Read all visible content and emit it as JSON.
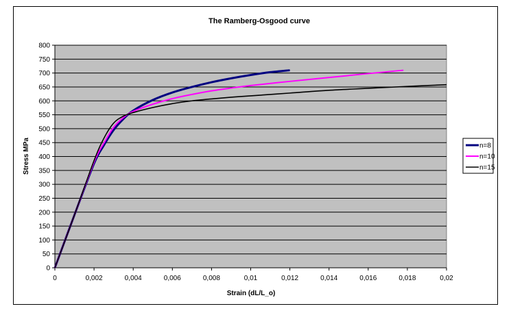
{
  "chart_data": {
    "type": "line",
    "title": "The Ramberg-Osgood curve",
    "xlabel": "Strain (dL/L_o)",
    "ylabel": "Stress MPa",
    "xlim": [
      0,
      0.02
    ],
    "ylim": [
      0,
      800
    ],
    "x_ticks": [
      "0",
      "0,002",
      "0,004",
      "0,006",
      "0,008",
      "0,01",
      "0,012",
      "0,014",
      "0,016",
      "0,018",
      "0,02"
    ],
    "y_ticks": [
      "0",
      "50",
      "100",
      "150",
      "200",
      "250",
      "300",
      "350",
      "400",
      "450",
      "500",
      "550",
      "600",
      "650",
      "700",
      "750",
      "800"
    ],
    "grid": true,
    "plot_background": "#c0c0c0",
    "legend_position": "right",
    "series": [
      {
        "name": "n=8",
        "color": "#000080",
        "x": [
          0,
          0.001,
          0.002,
          0.0025,
          0.003,
          0.0035,
          0.004,
          0.005,
          0.006,
          0.007,
          0.008,
          0.009,
          0.01,
          0.011,
          0.012
        ],
        "y": [
          0,
          190,
          375,
          440,
          495,
          535,
          565,
          603,
          630,
          650,
          667,
          681,
          693,
          703,
          710
        ]
      },
      {
        "name": "n=10",
        "color": "#ff00ff",
        "x": [
          0,
          0.001,
          0.002,
          0.0025,
          0.003,
          0.0035,
          0.004,
          0.005,
          0.006,
          0.007,
          0.008,
          0.009,
          0.01,
          0.012,
          0.014,
          0.016,
          0.0178
        ],
        "y": [
          0,
          190,
          380,
          448,
          505,
          540,
          562,
          588,
          608,
          623,
          636,
          646,
          655,
          670,
          684,
          698,
          710
        ]
      },
      {
        "name": "n=15",
        "color": "#000000",
        "x": [
          0,
          0.001,
          0.002,
          0.0025,
          0.003,
          0.0035,
          0.004,
          0.005,
          0.006,
          0.007,
          0.008,
          0.009,
          0.01,
          0.012,
          0.014,
          0.016,
          0.018,
          0.02
        ],
        "y": [
          0,
          190,
          385,
          465,
          520,
          545,
          558,
          576,
          590,
          600,
          607,
          613,
          618,
          628,
          638,
          645,
          652,
          658
        ]
      }
    ]
  }
}
